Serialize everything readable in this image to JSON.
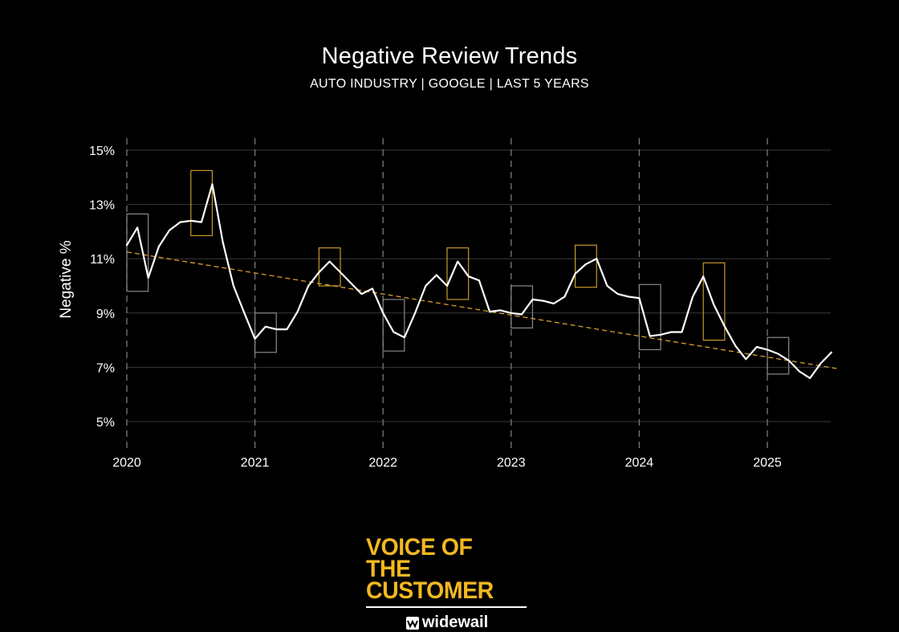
{
  "colors": {
    "background": "#000000",
    "line": "#ffffff",
    "trend": "#d9a22a",
    "box_yellow": "#c9982a",
    "box_gray": "#8a8a8a",
    "grid": "#3a3a3a",
    "brand": "#f2b820"
  },
  "chart_data": {
    "type": "line",
    "title": "Negative Review Trends",
    "subtitle": "AUTO INDUSTRY | GOOGLE | LAST 5 YEARS",
    "xlabel": "",
    "ylabel": "Negative %",
    "x_ticks": [
      "2020",
      "2021",
      "2022",
      "2023",
      "2024",
      "2025"
    ],
    "y_ticks": [
      "15%",
      "13%",
      "11%",
      "9%",
      "7%",
      "5%"
    ],
    "ylim": [
      4.6,
      15.2
    ],
    "xlim": [
      2020.0,
      2025.6
    ],
    "grid": "horizontal solid, vertical dashed at years",
    "series": [
      {
        "x": [
          2020.0,
          2020.083,
          2020.167,
          2020.25,
          2020.333,
          2020.417,
          2020.5,
          2020.583,
          2020.667,
          2020.75,
          2020.833,
          2020.917,
          2021.0,
          2021.083,
          2021.167,
          2021.25,
          2021.333,
          2021.417,
          2021.5,
          2021.583,
          2021.667,
          2021.75,
          2021.833,
          2021.917,
          2022.0,
          2022.083,
          2022.167,
          2022.25,
          2022.333,
          2022.417,
          2022.5,
          2022.583,
          2022.667,
          2022.75,
          2022.833,
          2022.917,
          2023.0,
          2023.083,
          2023.167,
          2023.25,
          2023.333,
          2023.417,
          2023.5,
          2023.583,
          2023.667,
          2023.75,
          2023.833,
          2023.917,
          2024.0,
          2024.083,
          2024.167,
          2024.25,
          2024.333,
          2024.417,
          2024.5,
          2024.583,
          2024.667,
          2024.75,
          2024.833,
          2024.917,
          2025.0,
          2025.083,
          2025.167,
          2025.25,
          2025.333,
          2025.417,
          2025.5
        ],
        "values": [
          11.5,
          12.15,
          10.3,
          11.45,
          12.05,
          12.35,
          12.4,
          12.35,
          13.75,
          11.6,
          10.0,
          9.0,
          8.05,
          8.5,
          8.4,
          8.4,
          9.05,
          10.0,
          10.5,
          10.9,
          10.5,
          10.1,
          9.7,
          9.9,
          9.0,
          8.3,
          8.1,
          9.0,
          10.0,
          10.4,
          10.0,
          10.9,
          10.35,
          10.2,
          9.05,
          9.1,
          9.0,
          8.95,
          9.5,
          9.45,
          9.35,
          9.6,
          10.45,
          10.8,
          11.0,
          10.0,
          9.7,
          9.6,
          9.55,
          8.15,
          8.2,
          8.3,
          8.3,
          9.6,
          10.35,
          9.3,
          8.5,
          7.8,
          7.3,
          7.75,
          7.65,
          7.5,
          7.25,
          6.85,
          6.6,
          7.15,
          7.55
        ]
      }
    ],
    "trendline": {
      "start": [
        2020.0,
        11.25
      ],
      "end": [
        2025.55,
        6.95
      ]
    },
    "range_boxes": [
      {
        "x0": 2020.0,
        "x1": 2020.167,
        "low": 9.8,
        "high": 12.65,
        "color": "gray"
      },
      {
        "x0": 2020.5,
        "x1": 2020.667,
        "low": 11.85,
        "high": 14.25,
        "color": "yellow"
      },
      {
        "x0": 2021.0,
        "x1": 2021.167,
        "low": 7.55,
        "high": 9.0,
        "color": "gray"
      },
      {
        "x0": 2021.5,
        "x1": 2021.667,
        "low": 10.0,
        "high": 11.4,
        "color": "yellow"
      },
      {
        "x0": 2022.0,
        "x1": 2022.167,
        "low": 7.6,
        "high": 9.5,
        "color": "gray"
      },
      {
        "x0": 2022.5,
        "x1": 2022.667,
        "low": 9.5,
        "high": 11.4,
        "color": "yellow"
      },
      {
        "x0": 2023.0,
        "x1": 2023.167,
        "low": 8.45,
        "high": 10.0,
        "color": "gray"
      },
      {
        "x0": 2023.5,
        "x1": 2023.667,
        "low": 9.95,
        "high": 11.5,
        "color": "yellow"
      },
      {
        "x0": 2024.0,
        "x1": 2024.167,
        "low": 7.65,
        "high": 10.05,
        "color": "gray"
      },
      {
        "x0": 2024.5,
        "x1": 2024.667,
        "low": 8.0,
        "high": 10.85,
        "color": "yellow"
      },
      {
        "x0": 2025.0,
        "x1": 2025.167,
        "low": 6.75,
        "high": 8.1,
        "color": "gray"
      }
    ]
  },
  "brand": {
    "line1": "VOICE OF THE",
    "line2": "CUSTOMER",
    "sub": "widewail",
    "logo_icon": "widewail-logo-icon"
  }
}
